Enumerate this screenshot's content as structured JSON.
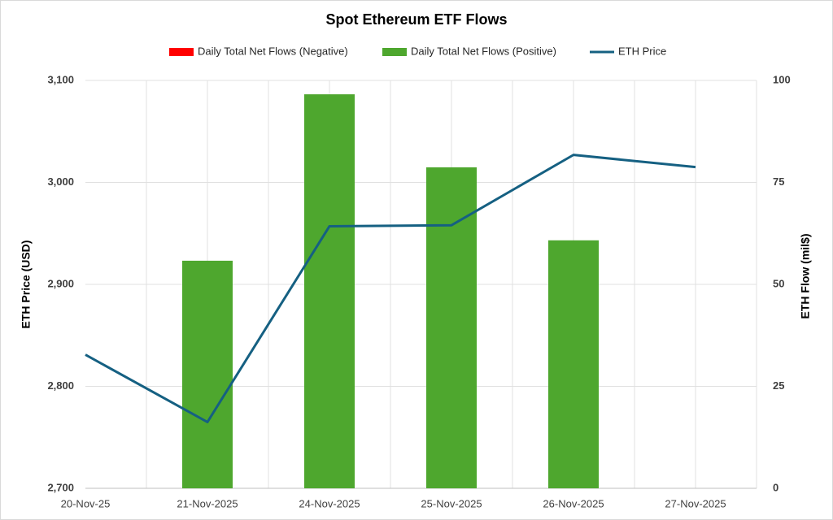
{
  "chart_data": {
    "type": "combo",
    "title": "Spot Ethereum ETF Flows",
    "categories": [
      "20-Nov-25",
      "21-Nov-2025",
      "24-Nov-2025",
      "25-Nov-2025",
      "26-Nov-2025",
      "27-Nov-2025"
    ],
    "series": [
      {
        "name": "Daily Total Net Flows (Negative)",
        "color": "#ff0000",
        "type": "bar",
        "axis": "y2",
        "values": [
          null,
          null,
          null,
          null,
          null,
          null
        ]
      },
      {
        "name": "Daily Total Net Flows (Positive)",
        "color": "#4ea72e",
        "type": "bar",
        "axis": "y2",
        "values": [
          null,
          55.8,
          96.6,
          78.7,
          60.8,
          null
        ]
      },
      {
        "name": "ETH Price",
        "color": "#156082",
        "type": "line",
        "axis": "y",
        "values": [
          2831,
          2765,
          2957,
          2958,
          3027,
          3015
        ]
      }
    ],
    "y_label": "ETH Price (USD)",
    "y2_label": "ETH Flow (mil$)",
    "ylim": [
      2700,
      3100
    ],
    "yticks": [
      {
        "value": 2700,
        "label": "2,700"
      },
      {
        "value": 2800,
        "label": "2,800"
      },
      {
        "value": 2900,
        "label": "2,900"
      },
      {
        "value": 3000,
        "label": "3,000"
      },
      {
        "value": 3100,
        "label": "3,100"
      }
    ],
    "y2lim": [
      0,
      100
    ],
    "y2ticks": [
      0,
      25,
      50,
      75,
      100
    ],
    "grid": true,
    "legend": "top"
  }
}
